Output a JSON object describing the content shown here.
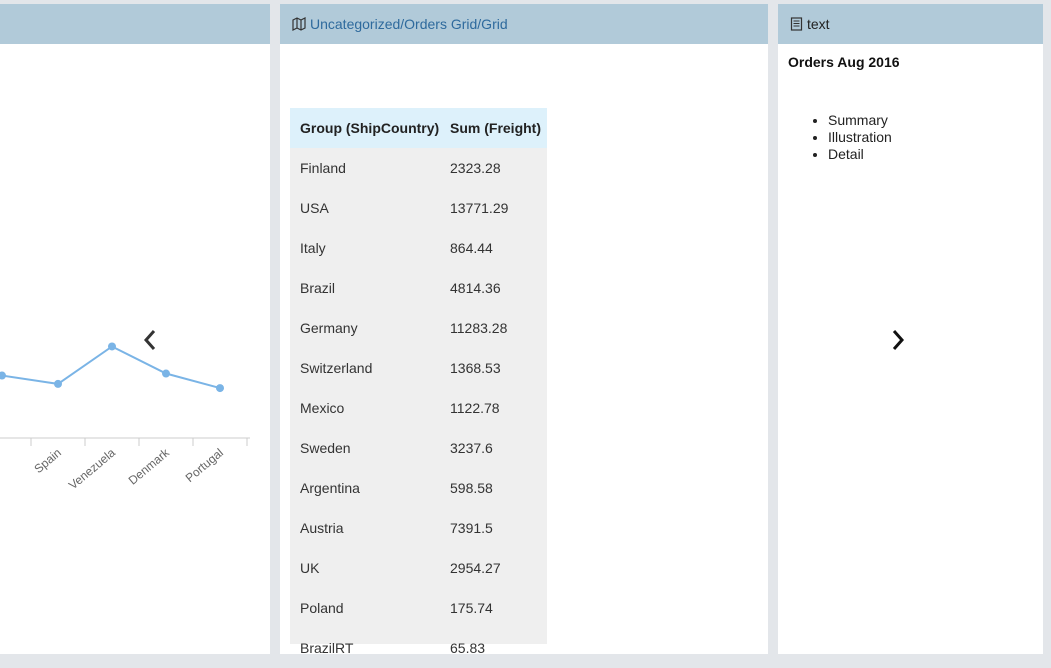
{
  "middle_panel": {
    "header_title": "Uncategorized/Orders Grid/Grid",
    "header_icon": "map-icon",
    "grid": {
      "columns": [
        "Group (ShipCountry)",
        "Sum (Freight)"
      ],
      "rows": [
        [
          "Finland",
          "2323.28"
        ],
        [
          "USA",
          "13771.29"
        ],
        [
          "Italy",
          "864.44"
        ],
        [
          "Brazil",
          "4814.36"
        ],
        [
          "Germany",
          "11283.28"
        ],
        [
          "Switzerland",
          "1368.53"
        ],
        [
          "Mexico",
          "1122.78"
        ],
        [
          "Sweden",
          "3237.6"
        ],
        [
          "Argentina",
          "598.58"
        ],
        [
          "Austria",
          "7391.5"
        ],
        [
          "UK",
          "2954.27"
        ],
        [
          "Poland",
          "175.74"
        ],
        [
          "BrazilRT",
          "65.83"
        ]
      ]
    }
  },
  "right_panel": {
    "header_title": "text",
    "header_icon": "document-icon",
    "title": "Orders Aug 2016",
    "list": [
      "Summary",
      "Illustration",
      "Detail"
    ]
  },
  "left_panel": {
    "chart_data": {
      "type": "line",
      "categories": [
        "Spain",
        "Venezuela",
        "Denmark",
        "Portugal"
      ],
      "values": [
        52,
        88,
        62,
        48
      ],
      "color": "#7ab4e6"
    }
  },
  "colors": {
    "background": "#e3e6ea",
    "header": "#b1cad9",
    "link": "#2e6a9d",
    "grid_header": "#ddf1fb",
    "grid_body": "#efefef"
  }
}
